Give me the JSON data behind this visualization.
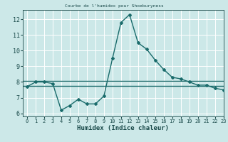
{
  "title": "",
  "xlabel": "Humidex (Indice chaleur)",
  "bg_color": "#cce8e8",
  "grid_color": "#ffffff",
  "line_color": "#1a6b6b",
  "xlim": [
    -0.5,
    23
  ],
  "ylim": [
    5.8,
    12.6
  ],
  "yticks": [
    6,
    7,
    8,
    9,
    10,
    11,
    12
  ],
  "xticks": [
    0,
    1,
    2,
    3,
    4,
    5,
    6,
    7,
    8,
    9,
    10,
    11,
    12,
    13,
    14,
    15,
    16,
    17,
    18,
    19,
    20,
    21,
    22,
    23
  ],
  "line1_x": [
    0,
    1,
    2,
    3,
    4,
    5,
    6,
    7,
    8,
    9,
    10,
    11,
    12,
    13,
    14,
    15,
    16,
    17,
    18,
    19,
    20,
    21,
    22,
    23
  ],
  "line1_y": [
    7.7,
    8.0,
    8.0,
    7.9,
    6.2,
    6.5,
    6.9,
    6.6,
    6.6,
    7.1,
    9.5,
    11.8,
    12.3,
    10.5,
    10.1,
    9.4,
    8.8,
    8.3,
    8.2,
    8.0,
    7.8,
    7.8,
    7.6,
    7.5
  ],
  "line2_x": [
    -0.5,
    23
  ],
  "line2_y": [
    8.05,
    8.05
  ],
  "line3_x": [
    -0.5,
    23
  ],
  "line3_y": [
    7.75,
    7.75
  ],
  "title_text": "Courbe de l'humidex pour Shoeburyness"
}
